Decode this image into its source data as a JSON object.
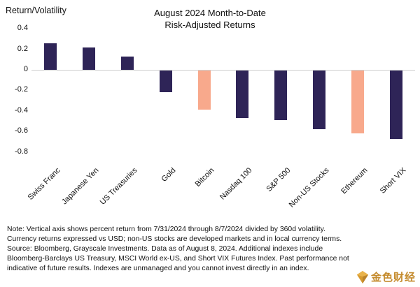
{
  "ylabel": "Return/Volatility",
  "title_line1": "August 2024 Month-to-Date",
  "title_line2": "Risk-Adjusted Returns",
  "chart_data": {
    "type": "bar",
    "title": "August 2024 Month-to-Date Risk-Adjusted Returns",
    "ylabel": "Return/Volatility",
    "categories": [
      "Swiss Franc",
      "Japanese Yen",
      "US Treasuries",
      "Gold",
      "Bitcoin",
      "Nasdaq 100",
      "S&P 500",
      "Non-US Stocks",
      "Ethereum",
      "Short VIX"
    ],
    "values": [
      0.26,
      0.22,
      0.13,
      -0.21,
      -0.38,
      -0.46,
      -0.48,
      -0.57,
      -0.61,
      -0.67
    ],
    "bar_color_keys": [
      "navy",
      "navy",
      "navy",
      "navy",
      "salmon",
      "navy",
      "navy",
      "navy",
      "salmon",
      "navy"
    ],
    "colors": {
      "navy": "#2e2457",
      "salmon": "#f8a98c"
    },
    "ytick_labels": [
      "0.4",
      "0.2",
      "0",
      "-0.2",
      "-0.4",
      "-0.6",
      "-0.8"
    ],
    "ytick_values": [
      0.4,
      0.2,
      0,
      -0.2,
      -0.4,
      -0.6,
      -0.8
    ],
    "ylim": [
      -0.8,
      0.45
    ],
    "grid": "zero-line-only",
    "legend": "none"
  },
  "note_lines": [
    "Note: Vertical axis shows percent return from 7/31/2024 through 8/7/2024 divided by 360d volatility.",
    "Currency returns expressed vs USD; non-US stocks are developed markets and in local currency terms.",
    "Source: Bloomberg, Grayscale Investments. Data as of August 8, 2024. Additional indexes include",
    "Bloomberg-Barclays US Treasury, MSCI World ex-US, and Short VIX Futures Index. Past performance not",
    "indicative of future results. Indexes are unmanaged and you cannot invest directly in an index."
  ],
  "watermark": {
    "text": "金色财经"
  }
}
